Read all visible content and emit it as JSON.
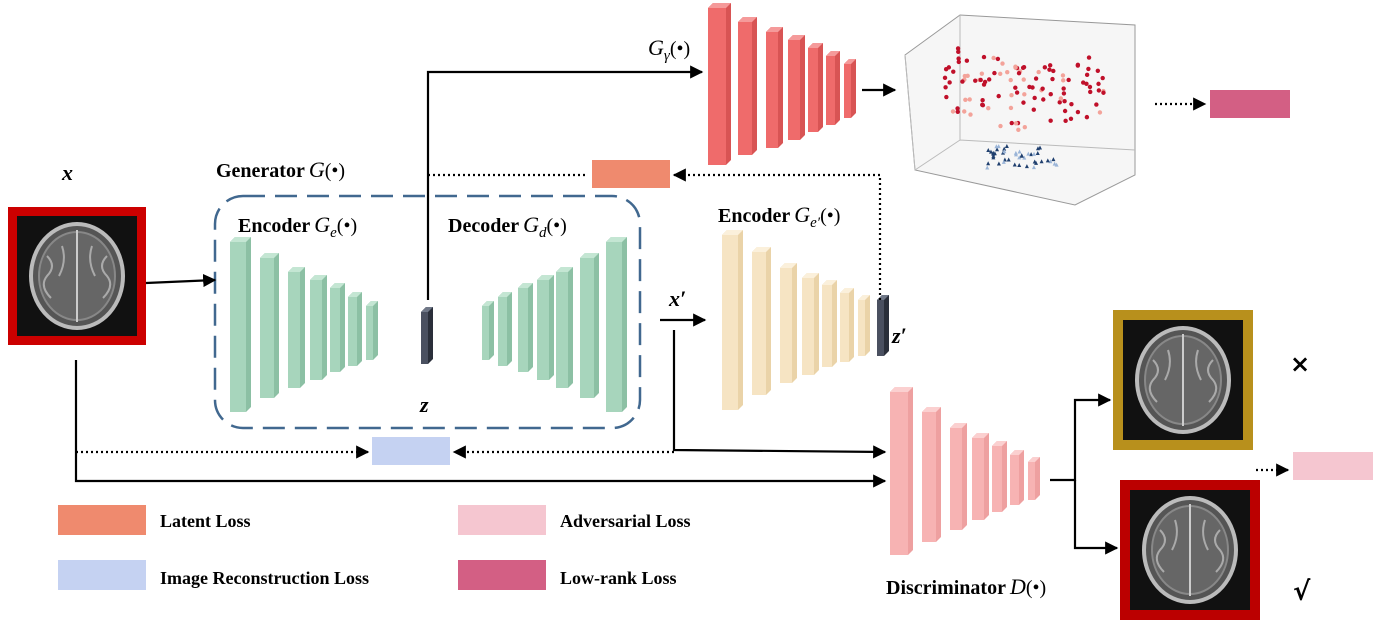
{
  "inputs": {
    "x": "x",
    "x_prime": "x′",
    "z": "z",
    "z_prime": "z′"
  },
  "generator": {
    "label": "Generator",
    "symbol": "G",
    "argument": "(•)"
  },
  "encoder": {
    "label": "Encoder",
    "symbol": "G",
    "subscript": "e",
    "argument": "(•)"
  },
  "decoder": {
    "label": "Decoder",
    "symbol": "G",
    "subscript": "d",
    "argument": "(•)"
  },
  "encoder2": {
    "label": "Encoder",
    "symbol": "G",
    "subscript": "e′",
    "argument": "(•)"
  },
  "gamma": {
    "symbol": "G",
    "subscript": "γ",
    "argument": "(•)"
  },
  "discriminator": {
    "label": "Discriminator",
    "symbol": "D",
    "argument": "(•)"
  },
  "outcomes": {
    "fake": "×",
    "real": "√"
  },
  "legend": [
    "Latent Loss",
    "Image Reconstruction Loss",
    "Adversarial Loss",
    "Low-rank Loss"
  ]
}
